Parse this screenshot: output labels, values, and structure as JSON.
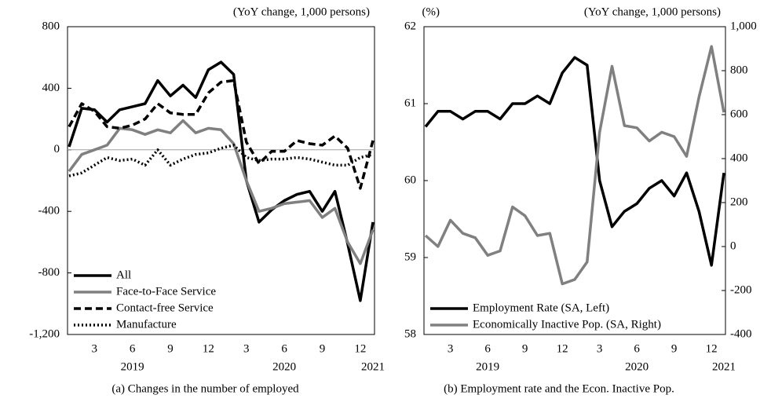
{
  "chart_data": [
    {
      "type": "line",
      "title": "(a) Changes in the number of employed",
      "note": "(YoY change,  1,000 persons)",
      "categories": [
        null,
        null,
        "3",
        null,
        null,
        "6",
        null,
        null,
        "9",
        null,
        null,
        "12",
        null,
        null,
        "3",
        null,
        null,
        "6",
        null,
        null,
        "9",
        null,
        null,
        "12",
        null
      ],
      "years": [
        "2019",
        "2020",
        "2021"
      ],
      "ylim": [
        -1200,
        800
      ],
      "yticks": [
        {
          "value": -1200,
          "label": "-1,200"
        },
        -800,
        -400,
        0,
        400,
        800
      ],
      "zero_line": true,
      "legend": "lower left",
      "series": [
        {
          "name": "All",
          "color": "#000000",
          "dash": "solid",
          "values": [
            20,
            270,
            260,
            180,
            260,
            280,
            300,
            450,
            350,
            420,
            340,
            520,
            570,
            490,
            -200,
            -470,
            -390,
            -330,
            -290,
            -270,
            -400,
            -270,
            -610,
            -980,
            -470
          ]
        },
        {
          "name": "Face-to-Face Service",
          "color": "#808080",
          "dash": "solid",
          "values": [
            -140,
            -30,
            0,
            30,
            140,
            130,
            100,
            130,
            110,
            190,
            110,
            140,
            130,
            40,
            -200,
            -400,
            -380,
            -350,
            -340,
            -330,
            -440,
            -380,
            -600,
            -740,
            -520
          ]
        },
        {
          "name": "Contact-free Service",
          "color": "#000000",
          "dash": "dash",
          "values": [
            150,
            300,
            250,
            150,
            140,
            160,
            200,
            300,
            240,
            230,
            230,
            370,
            440,
            450,
            50,
            -90,
            -10,
            -10,
            60,
            40,
            30,
            90,
            10,
            -250,
            60
          ]
        },
        {
          "name": "Manufacture",
          "color": "#000000",
          "dash": "dot",
          "values": [
            -170,
            -150,
            -100,
            -50,
            -70,
            -60,
            -100,
            0,
            -100,
            -60,
            -30,
            -20,
            10,
            30,
            -50,
            -70,
            -60,
            -60,
            -50,
            -60,
            -80,
            -100,
            -100,
            -50,
            -30
          ]
        }
      ]
    },
    {
      "type": "line",
      "title": "(b) Employment rate and the Econ. Inactive Pop.",
      "note": "(YoY change,  1,000 persons)",
      "y_label": "(%)",
      "categories": [
        null,
        null,
        "3",
        null,
        null,
        "6",
        null,
        null,
        "9",
        null,
        null,
        "12",
        null,
        null,
        "3",
        null,
        null,
        "6",
        null,
        null,
        "9",
        null,
        null,
        "12",
        null
      ],
      "years": [
        "2019",
        "2020",
        "2021"
      ],
      "ylim": [
        58,
        62
      ],
      "yticks": [
        58,
        59,
        60,
        61,
        62
      ],
      "y2lim": [
        -400,
        1000
      ],
      "y2ticks": [
        -400,
        -200,
        0,
        200,
        400,
        600,
        800,
        {
          "value": 1000,
          "label": "1,000"
        }
      ],
      "legend": "lower left",
      "series": [
        {
          "name": "Employment Rate (SA, Left)",
          "color": "#000000",
          "dash": "solid",
          "values": [
            60.7,
            60.9,
            60.9,
            60.8,
            60.9,
            60.9,
            60.8,
            61.0,
            61.0,
            61.1,
            61.0,
            61.4,
            61.6,
            61.5,
            60.0,
            59.4,
            59.6,
            59.7,
            59.9,
            60.0,
            59.8,
            60.1,
            59.6,
            58.9,
            60.1
          ]
        },
        {
          "name": "Economically Inactive Pop. (SA, Right)",
          "color": "#808080",
          "dash": "solid",
          "axis": "y2",
          "values": [
            50,
            0,
            120,
            60,
            40,
            -40,
            -20,
            180,
            140,
            50,
            60,
            -170,
            -150,
            -70,
            520,
            820,
            550,
            540,
            480,
            520,
            500,
            410,
            680,
            910,
            610
          ]
        }
      ]
    }
  ]
}
